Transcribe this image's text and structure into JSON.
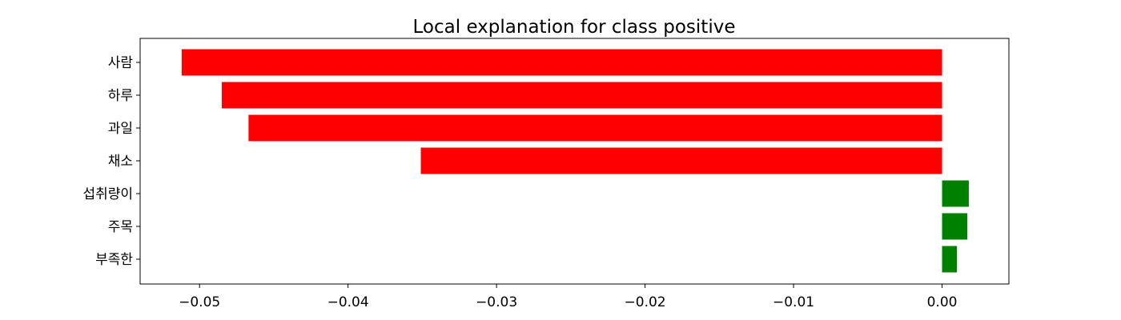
{
  "chart_data": {
    "type": "bar",
    "orientation": "horizontal",
    "title": "Local explanation for class positive",
    "xlabel": "",
    "ylabel": "",
    "xlim": [
      -0.054,
      0.0045
    ],
    "xticks": [
      -0.05,
      -0.04,
      -0.03,
      -0.02,
      -0.01,
      0.0
    ],
    "xtick_labels": [
      "−0.05",
      "−0.04",
      "−0.03",
      "−0.02",
      "−0.01",
      "0.00"
    ],
    "categories": [
      "사람",
      "하루",
      "과일",
      "채소",
      "섭취량이",
      "주목",
      "부족한"
    ],
    "values": [
      -0.0512,
      -0.0485,
      -0.0467,
      -0.0351,
      0.0018,
      0.0017,
      0.001
    ],
    "colors": {
      "negative": "#ff0000",
      "positive": "#008000"
    },
    "grid": false,
    "legend": "none"
  }
}
